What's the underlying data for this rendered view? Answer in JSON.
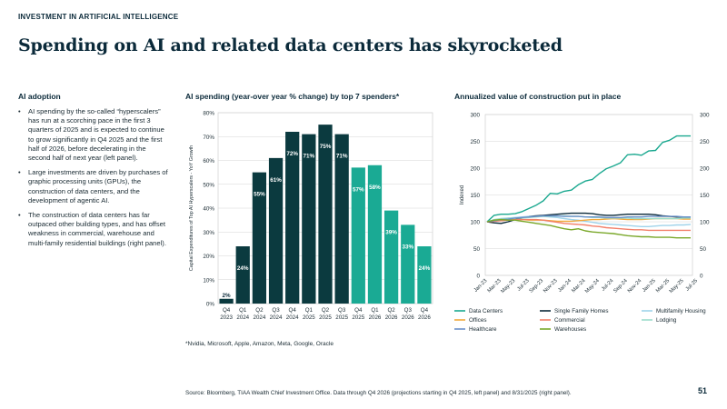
{
  "header": {
    "eyebrow": "INVESTMENT IN ARTIFICIAL INTELLIGENCE",
    "title": "Spending on AI and related data centers has skyrocketed"
  },
  "left_panel": {
    "title": "AI adoption",
    "bullets": [
      "AI spending by the so-called “hyperscalers” has run at a scorching pace in the first 3 quarters of 2025 and is expected to continue to grow significantly in Q4 2025 and the first half of 2026, before decelerating in the second half of next year (left panel).",
      "Large investments are driven by purchases of graphic processing units (GPUs), the construction of data centers, and the development of agentic AI.",
      "The construction of data centers has far outpaced other building types, and has offset weakness in commercial, warehouse and multi-family residential buildings (right panel)."
    ]
  },
  "footnote": "*Nvidia, Microsoft, Apple, Amazon, Meta, Google, Oracle",
  "source": "Source: Bloomberg, TIAA Wealth Chief Investment Office. Data through Q4 2026 (projections starting in Q4 2025, left panel) and 8/31/2025 (right panel).",
  "page_number": "51",
  "colors": {
    "dark": "#0b3a3f",
    "teal": "#1aaa94"
  },
  "chart_data": [
    {
      "type": "bar",
      "title": "AI spending (year-over year % change) by top 7 spenders*",
      "ylabel": "Capital Expenditures of Top AI Hyperscalers - YoY Growth",
      "ylim": [
        0,
        80
      ],
      "yticks": [
        "0%",
        "10%",
        "20%",
        "30%",
        "40%",
        "50%",
        "60%",
        "70%",
        "80%"
      ],
      "categories": [
        [
          "Q4",
          "2023"
        ],
        [
          "Q1",
          "2024"
        ],
        [
          "Q2",
          "2024"
        ],
        [
          "Q3",
          "2024"
        ],
        [
          "Q4",
          "2024"
        ],
        [
          "Q1",
          "2025"
        ],
        [
          "Q2",
          "2025"
        ],
        [
          "Q3",
          "2025"
        ],
        [
          "Q4",
          "2025"
        ],
        [
          "Q1",
          "2026"
        ],
        [
          "Q2",
          "2026"
        ],
        [
          "Q3",
          "2026"
        ],
        [
          "Q4",
          "2026"
        ]
      ],
      "values": [
        2,
        24,
        55,
        61,
        72,
        71,
        75,
        71,
        57,
        58,
        39,
        33,
        24
      ],
      "data_labels": [
        "2%",
        "24%",
        "55%",
        "61%",
        "72%",
        "71%",
        "75%",
        "71%",
        "57%",
        "58%",
        "39%",
        "33%",
        "24%"
      ],
      "projected": [
        false,
        false,
        false,
        false,
        false,
        false,
        false,
        false,
        true,
        true,
        true,
        true,
        true
      ],
      "grid": true
    },
    {
      "type": "line",
      "title": "Annualized value of construction put in place",
      "ylabel": "Indexed",
      "ylim": [
        0,
        300
      ],
      "yticks": [
        "0",
        "50",
        "100",
        "150",
        "200",
        "250",
        "300"
      ],
      "x_ticks": [
        "Jan-23",
        "Mar-23",
        "May-23",
        "Jul-23",
        "Sep-23",
        "Nov-23",
        "Jan-24",
        "Mar-24",
        "May-24",
        "Jul-24",
        "Sep-24",
        "Nov-24",
        "Jan-25",
        "Mar-25",
        "May-25",
        "Jul-25"
      ],
      "legend_position": "bottom",
      "grid": true,
      "series": [
        {
          "name": "Data Centers",
          "color": "#1aa88f",
          "values": [
            100,
            112,
            114,
            114,
            115,
            119,
            125,
            131,
            139,
            153,
            152,
            157,
            159,
            169,
            176,
            179,
            190,
            199,
            204,
            210,
            225,
            226,
            224,
            232,
            233,
            248,
            252,
            260,
            260,
            260
          ]
        },
        {
          "name": "Single Family Homes",
          "color": "#0b2a3a",
          "values": [
            100,
            98,
            97,
            100,
            104,
            107,
            110,
            111,
            112,
            113,
            114,
            115,
            116,
            116,
            116,
            115,
            113,
            112,
            112,
            113,
            114,
            114,
            114,
            114,
            113,
            111,
            110,
            109,
            109,
            108
          ]
        },
        {
          "name": "Multifamily Housing",
          "color": "#9fd3ea",
          "values": [
            100,
            103,
            105,
            107,
            108,
            109,
            110,
            110,
            110,
            109,
            108,
            106,
            104,
            103,
            101,
            99,
            97,
            96,
            95,
            94,
            93,
            92,
            91,
            91,
            92,
            93,
            93,
            94,
            94,
            95
          ]
        },
        {
          "name": "Offices",
          "color": "#f2a93b",
          "values": [
            100,
            101,
            103,
            104,
            104,
            104,
            103,
            103,
            103,
            102,
            101,
            101,
            101,
            102,
            103,
            104,
            104,
            105,
            106,
            105,
            104,
            104,
            104,
            105,
            106,
            106,
            106,
            106,
            105,
            105
          ]
        },
        {
          "name": "Commercial",
          "color": "#f2806a",
          "values": [
            100,
            101,
            102,
            103,
            104,
            104,
            104,
            104,
            103,
            101,
            99,
            97,
            96,
            95,
            94,
            92,
            91,
            89,
            88,
            87,
            86,
            85,
            85,
            84,
            84,
            84,
            84,
            84,
            84,
            84
          ]
        },
        {
          "name": "Lodging",
          "color": "#9cdccb",
          "values": [
            100,
            104,
            106,
            107,
            107,
            107,
            108,
            109,
            110,
            110,
            111,
            111,
            110,
            110,
            109,
            108,
            108,
            107,
            107,
            107,
            107,
            106,
            106,
            106,
            106,
            106,
            106,
            106,
            107,
            107
          ]
        },
        {
          "name": "Healthcare",
          "color": "#6a90c9",
          "values": [
            100,
            102,
            104,
            105,
            107,
            108,
            109,
            110,
            111,
            111,
            111,
            110,
            110,
            110,
            109,
            109,
            109,
            108,
            108,
            108,
            109,
            109,
            109,
            110,
            110,
            110,
            110,
            110,
            109,
            109
          ]
        },
        {
          "name": "Warehouses",
          "color": "#7aa82a",
          "values": [
            100,
            103,
            104,
            103,
            103,
            101,
            99,
            97,
            95,
            93,
            90,
            87,
            85,
            87,
            83,
            81,
            80,
            79,
            78,
            76,
            74,
            73,
            72,
            72,
            71,
            71,
            71,
            70,
            70,
            70
          ]
        }
      ]
    }
  ]
}
